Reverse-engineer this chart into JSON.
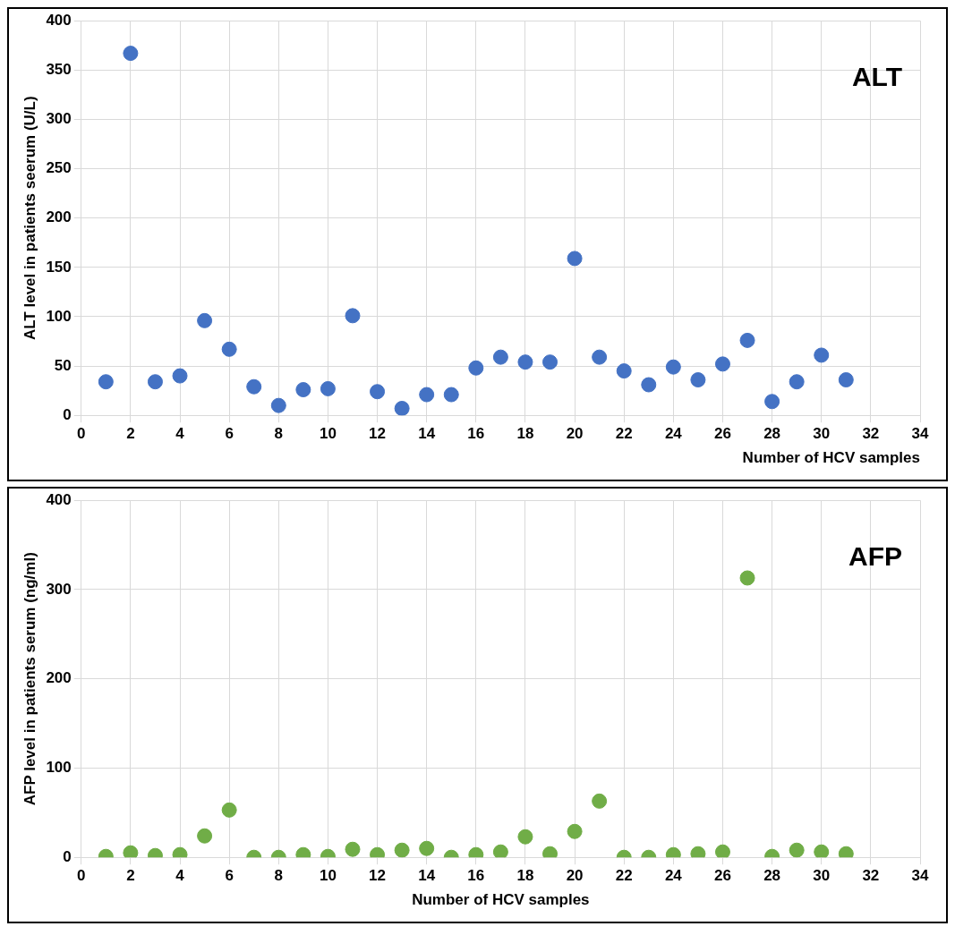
{
  "chart_data": [
    {
      "type": "scatter",
      "title": "ALT",
      "xlabel": "Number of HCV samples",
      "ylabel": "ALT level in patients seerum (U/L)",
      "x": [
        1,
        2,
        3,
        4,
        5,
        6,
        7,
        8,
        9,
        10,
        11,
        12,
        13,
        14,
        15,
        16,
        17,
        18,
        19,
        20,
        21,
        22,
        23,
        24,
        25,
        26,
        27,
        28,
        29,
        30,
        31
      ],
      "series": [
        {
          "color": "#4472c4",
          "values": [
            34,
            367,
            34,
            40,
            96,
            67,
            29,
            10,
            26,
            27,
            101,
            24,
            7,
            21,
            21,
            48,
            59,
            54,
            54,
            159,
            59,
            45,
            31,
            49,
            36,
            52,
            76,
            14,
            34,
            61,
            36
          ]
        }
      ],
      "xlim": [
        0,
        34
      ],
      "xticks": [
        0,
        2,
        4,
        6,
        8,
        10,
        12,
        14,
        16,
        18,
        20,
        22,
        24,
        26,
        28,
        30,
        32,
        34
      ],
      "ylim": [
        0,
        400
      ],
      "yticks": [
        0,
        50,
        100,
        150,
        200,
        250,
        300,
        350,
        400
      ],
      "grid": true,
      "legend": false,
      "marker": "circle"
    },
    {
      "type": "scatter",
      "title": "AFP",
      "xlabel": "Number of HCV samples",
      "ylabel": "AFP level in patients serum (ng/ml)",
      "x": [
        1,
        2,
        3,
        4,
        5,
        6,
        7,
        8,
        9,
        10,
        11,
        12,
        13,
        14,
        15,
        16,
        17,
        18,
        19,
        20,
        21,
        22,
        23,
        24,
        25,
        26,
        27,
        28,
        29,
        30,
        31
      ],
      "series": [
        {
          "color": "#70ad47",
          "values": [
            1,
            5,
            2,
            3,
            24,
            53,
            0,
            0,
            3,
            1,
            9,
            3,
            8,
            10,
            0,
            3,
            6,
            23,
            4,
            29,
            63,
            0,
            0,
            3,
            4,
            6,
            313,
            1,
            8,
            6,
            4
          ]
        }
      ],
      "xlim": [
        0,
        34
      ],
      "xticks": [
        0,
        2,
        4,
        6,
        8,
        10,
        12,
        14,
        16,
        18,
        20,
        22,
        24,
        26,
        28,
        30,
        32,
        34
      ],
      "ylim": [
        0,
        400
      ],
      "yticks": [
        0,
        100,
        200,
        300,
        400
      ],
      "grid": true,
      "legend": false,
      "marker": "circle"
    }
  ]
}
